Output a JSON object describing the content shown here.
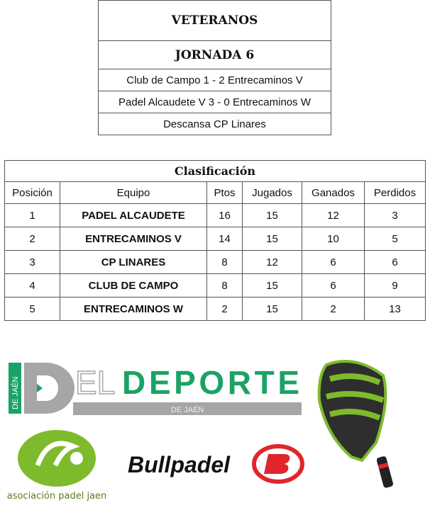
{
  "fixture": {
    "category": "VETERANOS",
    "round": "JORNADA 6",
    "matches": [
      "Club de Campo 1 - 2 Entrecaminos V",
      "Padel Alcaudete V 3 - 0 Entrecaminos W"
    ],
    "rest": "Descansa CP Linares"
  },
  "standings": {
    "title": "Clasificación",
    "headers": [
      "Posición",
      "Equipo",
      "Ptos",
      "Jugados",
      "Ganados",
      "Perdidos"
    ],
    "rows": [
      [
        "1",
        "PADEL ALCAUDETE",
        "16",
        "15",
        "12",
        "3"
      ],
      [
        "2",
        "ENTRECAMINOS V",
        "14",
        "15",
        "10",
        "5"
      ],
      [
        "3",
        "CP LINARES",
        "8",
        "12",
        "6",
        "6"
      ],
      [
        "4",
        "CLUB DE CAMPO",
        "8",
        "15",
        "6",
        "9"
      ],
      [
        "5",
        "ENTRECAMINOS W",
        "2",
        "15",
        "2",
        "13"
      ]
    ]
  },
  "logos": {
    "eldeporte": {
      "side": "DE JAÉN",
      "d": "D",
      "el": "EL",
      "deporte": "DEPORTE",
      "sub": "DE JAÉN"
    },
    "asociacion": "asociación padel jaen",
    "bullpadel": "Bullpadel"
  },
  "colors": {
    "green": "#1aa364",
    "gray": "#a6a6a6",
    "lime": "#7dbb2c",
    "red": "#e0262a"
  }
}
